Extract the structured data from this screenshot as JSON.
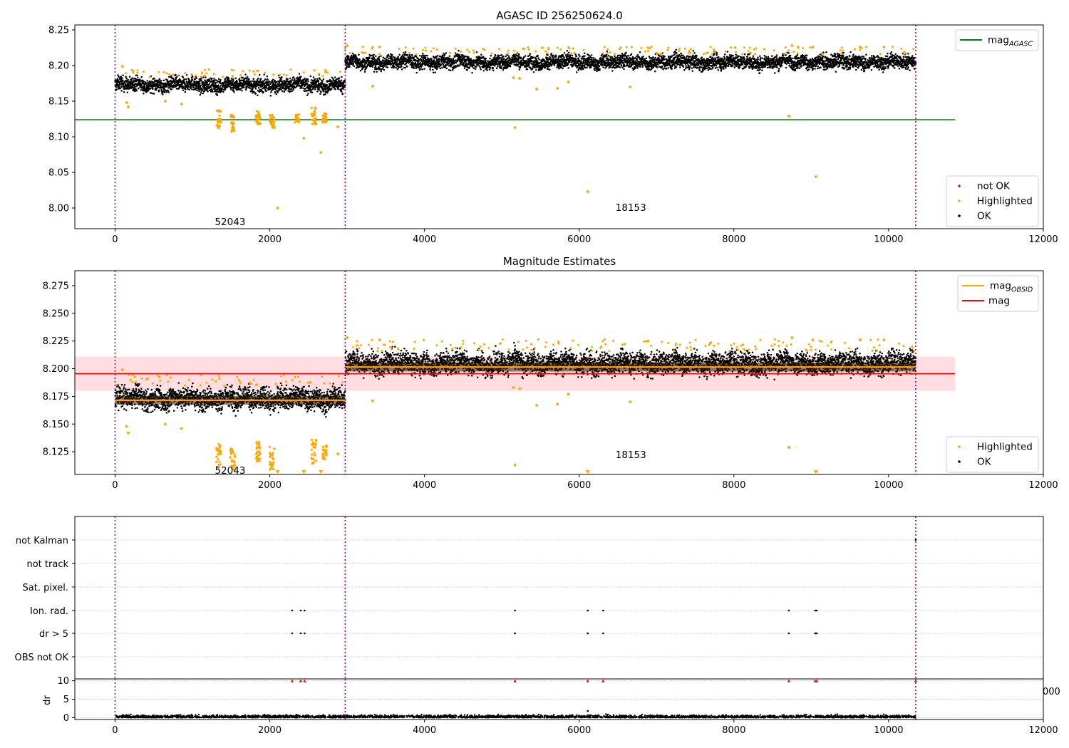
{
  "colors": {
    "ok": "#000000",
    "highlighted": "#ffa500",
    "not_ok": "#ff0000",
    "mag_agasc": "#008000",
    "mag_obsid": "#ffa500",
    "mag": "#ff0000",
    "mag_band": "#ffdde0",
    "obs_boundary": "#800080",
    "grid": "#b0b0b0"
  },
  "chart_data": [
    {
      "type": "scatter",
      "title": "AGASC ID 256250624.0",
      "xlabel": "",
      "ylabel": "",
      "xlim": [
        -520,
        12000
      ],
      "ylim": [
        7.971,
        8.257
      ],
      "xticks": [
        "0",
        "2000",
        "4000",
        "6000",
        "8000",
        "10000",
        "12000"
      ],
      "yticks": [
        "8.00",
        "8.05",
        "8.10",
        "8.15",
        "8.20",
        "8.25"
      ],
      "legend_top": {
        "placement": "top-right",
        "entries": [
          {
            "label_main": "mag",
            "label_sub": "AGASC",
            "color": "#008000"
          }
        ]
      },
      "legend_bottom": {
        "placement": "bottom-right",
        "entries": [
          {
            "label": "not OK",
            "color": "#ff0000"
          },
          {
            "label": "Highlighted",
            "color": "#ffa500"
          },
          {
            "label": "OK",
            "color": "#000000"
          }
        ]
      },
      "annotations": [
        {
          "text": "52043",
          "x": 1290,
          "y": 7.981
        },
        {
          "text": "18153",
          "x": 6470,
          "y": 8.001
        }
      ],
      "obs_boundaries": [
        0,
        2975,
        10350
      ],
      "mag_agasc": 8.124,
      "observations": [
        {
          "obsid": "52043",
          "x_start": 0,
          "x_end": 2975,
          "ok_mean": 8.173,
          "ok_spread": 0.009
        },
        {
          "obsid": "18153",
          "x_start": 2975,
          "x_end": 10350,
          "ok_mean": 8.205,
          "ok_spread": 0.009
        }
      ],
      "highlighted_points": [
        [
          95,
          8.199
        ],
        [
          150,
          8.148
        ],
        [
          170,
          8.142
        ],
        [
          650,
          8.15
        ],
        [
          860,
          8.146
        ],
        [
          2100,
          8.0
        ],
        [
          2440,
          8.098
        ],
        [
          2660,
          8.078
        ],
        [
          2880,
          8.114
        ],
        [
          3330,
          8.171
        ],
        [
          3000,
          8.228
        ],
        [
          3420,
          8.226
        ],
        [
          5150,
          8.183
        ],
        [
          5170,
          8.113
        ],
        [
          5230,
          8.182
        ],
        [
          5450,
          8.167
        ],
        [
          5720,
          8.168
        ],
        [
          5860,
          8.177
        ],
        [
          6110,
          8.023
        ],
        [
          6660,
          8.17
        ],
        [
          6890,
          8.225
        ],
        [
          8710,
          8.129
        ],
        [
          8750,
          8.228
        ],
        [
          9060,
          8.044
        ],
        [
          9020,
          8.226
        ],
        [
          9630,
          8.226
        ],
        [
          9940,
          8.226
        ]
      ],
      "highlighted_clusters": [
        {
          "x": 1340,
          "y_min": 8.112,
          "y_max": 8.138
        },
        {
          "x": 1520,
          "y_min": 8.107,
          "y_max": 8.131
        },
        {
          "x": 1850,
          "y_min": 8.117,
          "y_max": 8.136
        },
        {
          "x": 2030,
          "y_min": 8.112,
          "y_max": 8.133
        },
        {
          "x": 2350,
          "y_min": 8.118,
          "y_max": 8.132
        },
        {
          "x": 2570,
          "y_min": 8.117,
          "y_max": 8.141
        },
        {
          "x": 2710,
          "y_min": 8.12,
          "y_max": 8.134
        }
      ]
    },
    {
      "type": "scatter",
      "title": "Magnitude Estimates",
      "xlabel": "",
      "ylabel": "",
      "xlim": [
        -520,
        12000
      ],
      "ylim": [
        8.1045,
        8.2885
      ],
      "xticks": [
        "0",
        "2000",
        "4000",
        "6000",
        "8000",
        "10000",
        "12000"
      ],
      "yticks": [
        "8.125",
        "8.150",
        "8.175",
        "8.200",
        "8.225",
        "8.250",
        "8.275"
      ],
      "legend_top": {
        "placement": "top-right",
        "entries": [
          {
            "label_main": "mag",
            "label_sub": "OBSID",
            "color": "#ffa500"
          },
          {
            "label": "mag",
            "color": "#ff0000"
          }
        ]
      },
      "legend_bottom": {
        "placement": "bottom-right",
        "entries": [
          {
            "label": "Highlighted",
            "color": "#ffa500"
          },
          {
            "label": "OK",
            "color": "#000000"
          }
        ]
      },
      "annotations": [
        {
          "text": "52043",
          "x": 1290,
          "y": 8.1085
        },
        {
          "text": "18153",
          "x": 6470,
          "y": 8.1225
        }
      ],
      "obs_boundaries": [
        0,
        2975,
        10350
      ],
      "mag": 8.1955,
      "mag_band": [
        8.18,
        8.211
      ],
      "mag_line_x": [
        0,
        10860
      ],
      "mag_obsid": [
        {
          "obsid": "52043",
          "x_start": 0,
          "x_end": 2975,
          "value": 8.1715
        },
        {
          "obsid": "18153",
          "x_start": 2975,
          "x_end": 10350,
          "value": 8.2015
        }
      ],
      "observations": [
        {
          "obsid": "52043",
          "x_start": 0,
          "x_end": 2975,
          "ok_mean": 8.173,
          "ok_spread": 0.009
        },
        {
          "obsid": "18153",
          "x_start": 2975,
          "x_end": 10350,
          "ok_mean": 8.205,
          "ok_spread": 0.009
        }
      ],
      "highlighted_points": [
        [
          95,
          8.199
        ],
        [
          150,
          8.148
        ],
        [
          170,
          8.142
        ],
        [
          650,
          8.15
        ],
        [
          860,
          8.146
        ],
        [
          2880,
          8.123
        ],
        [
          3330,
          8.171
        ],
        [
          3000,
          8.228
        ],
        [
          3420,
          8.226
        ],
        [
          5150,
          8.183
        ],
        [
          5170,
          8.113
        ],
        [
          5230,
          8.182
        ],
        [
          5450,
          8.167
        ],
        [
          5720,
          8.168
        ],
        [
          5860,
          8.177
        ],
        [
          6660,
          8.17
        ],
        [
          6890,
          8.225
        ],
        [
          8710,
          8.129
        ],
        [
          8750,
          8.228
        ],
        [
          9020,
          8.226
        ],
        [
          9630,
          8.226
        ],
        [
          9940,
          8.226
        ]
      ],
      "highlighted_clusters": [
        {
          "x": 1340,
          "y_min": 8.11,
          "y_max": 8.132
        },
        {
          "x": 1520,
          "y_min": 8.107,
          "y_max": 8.128
        },
        {
          "x": 1850,
          "y_min": 8.115,
          "y_max": 8.134
        },
        {
          "x": 2030,
          "y_min": 8.107,
          "y_max": 8.13
        },
        {
          "x": 2570,
          "y_min": 8.114,
          "y_max": 8.136
        },
        {
          "x": 2710,
          "y_min": 8.118,
          "y_max": 8.131
        }
      ],
      "out_of_range_markers_x": [
        2100,
        2440,
        2660,
        6110,
        9060
      ]
    },
    {
      "type": "scatter",
      "title": "",
      "xlabel": "",
      "ylabel": "",
      "xlim": [
        -520,
        12000
      ],
      "category_labels": [
        "not Kalman",
        "not track",
        "Sat. pixel.",
        "Ion. rad.",
        "dr > 5",
        "OBS not OK"
      ],
      "flag_points": {
        "not Kalman": [
          10350
        ],
        "Ion. rad.": [
          2290,
          2400,
          2450,
          5170,
          6110,
          6310,
          8710,
          9050,
          9070
        ],
        "dr > 5": [
          2290,
          2400,
          2450,
          5170,
          6110,
          6310,
          8710,
          9050,
          9070
        ]
      },
      "obs_boundaries": [
        0,
        2975,
        10350
      ]
    },
    {
      "type": "scatter",
      "title": "",
      "xlabel": "",
      "ylabel": "dr",
      "xlim": [
        -520,
        12000
      ],
      "ylim": [
        -0.5,
        10.5
      ],
      "xticks": [
        "0",
        "2000",
        "4000",
        "6000",
        "8000",
        "10000",
        "12000"
      ],
      "yticks": [
        "0",
        "5",
        "10"
      ],
      "clipped_tick_label": "000",
      "clipped_markers_x": [
        2290,
        2400,
        2450,
        5170,
        6110,
        6310,
        8710,
        9050,
        9070,
        10350
      ],
      "dr_baseline": {
        "x_start": 0,
        "x_end": 10350,
        "mean": 0.35,
        "max": 1.0
      },
      "dr_outliers": [
        [
          6110,
          1.8
        ]
      ],
      "obs_boundaries": [
        0,
        2975,
        10350
      ]
    }
  ]
}
